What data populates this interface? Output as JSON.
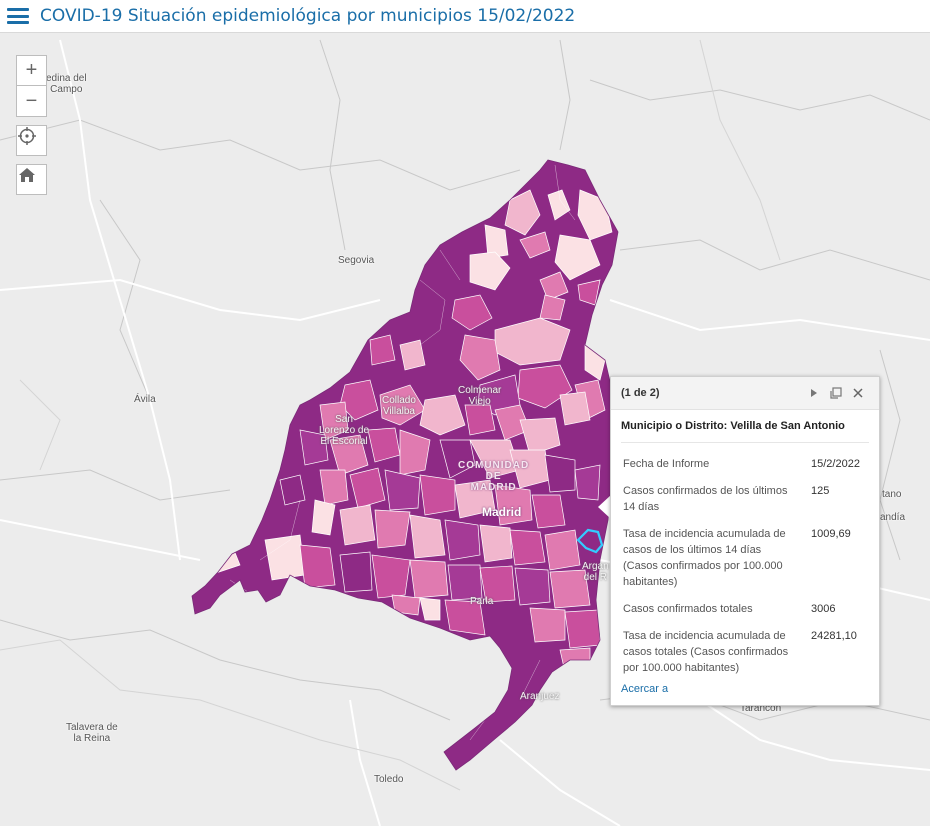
{
  "header": {
    "title": "COVID-19 Situación epidemiológica por municipios 15/02/2022"
  },
  "controls": {
    "zoom_in": "+",
    "zoom_out": "−"
  },
  "map": {
    "places": {
      "medina": "edina del\nCampo",
      "segovia": "Segovia",
      "avila": "Ávila",
      "talavera": "Talavera de\nla Reina",
      "toledo": "Toledo",
      "tarancon": "Tarancón",
      "tano": "tano",
      "andia": "andía",
      "san_lorenzo": "San\nLorenzo de\nEl Escorial",
      "collado": "Collado\nVillalba",
      "colmenar": "Colmenar\nViejo",
      "comunidad": "COMUNIDAD\nDE\nMADRID",
      "madrid": "Madrid",
      "parla": "Parla",
      "aranjuez": "Aranjuez",
      "arganda": "Argan\ndel R"
    },
    "colors": {
      "dark": "#8e2a85",
      "medium_dark": "#a53a96",
      "medium": "#c94f9d",
      "light_medium": "#e07ab0",
      "light": "#f1b6cd",
      "very_light": "#fbe1e4",
      "selected_outline": "#33ccff"
    }
  },
  "popup": {
    "count": "(1 de 2)",
    "heading": "Municipio o Distrito: Velilla de San Antonio",
    "rows": [
      {
        "label": "Fecha de Informe",
        "value": "15/2/2022"
      },
      {
        "label": "Casos confirmados de los últimos 14 días",
        "value": "125"
      },
      {
        "label": "Tasa de incidencia acumulada de casos de los últimos 14 días (Casos confirmados por 100.000 habitantes)",
        "value": "1009,69"
      },
      {
        "label": "Casos confirmados totales",
        "value": "3006"
      },
      {
        "label": "Tasa de incidencia acumulada de casos totales (Casos confirmados por 100.000 habitantes)",
        "value": "24281,10"
      }
    ],
    "zoom_link": "Acercar a"
  }
}
